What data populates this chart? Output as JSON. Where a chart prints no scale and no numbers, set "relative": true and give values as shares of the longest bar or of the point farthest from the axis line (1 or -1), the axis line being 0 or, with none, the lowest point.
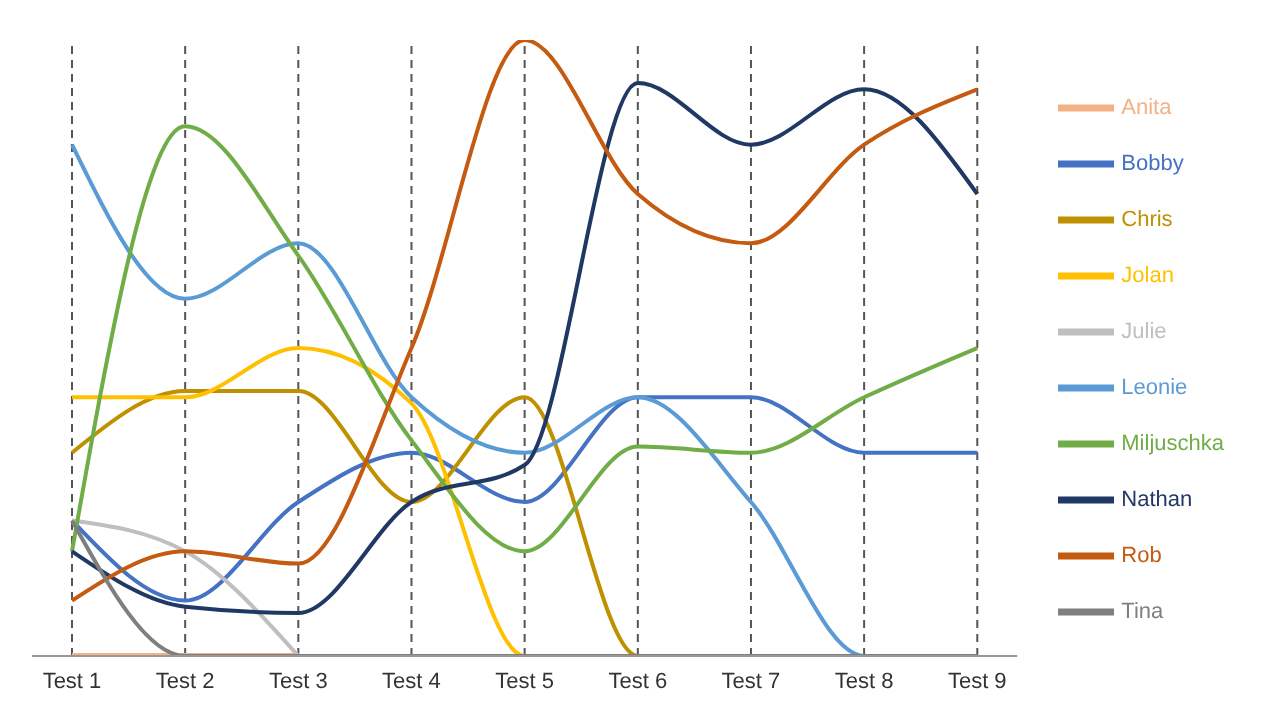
{
  "chart_data": {
    "type": "line",
    "relative": true,
    "grid": "x",
    "legend": "right",
    "marker": "none",
    "categories": [
      "Test 1",
      "Test 2",
      "Test 3",
      "Test 4",
      "Test 5",
      "Test 6",
      "Test 7",
      "Test 8",
      "Test 9"
    ],
    "series": [
      {
        "name": "Anita",
        "color": "#f4b183",
        "values": [
          0,
          0,
          0,
          null,
          null,
          null,
          null,
          null,
          null
        ]
      },
      {
        "name": "Bobby",
        "color": "#4472c4",
        "values": [
          0.22,
          0.09,
          0.25,
          0.33,
          0.25,
          0.42,
          0.42,
          0.33,
          0.33
        ]
      },
      {
        "name": "Chris",
        "color": "#bf9000",
        "values": [
          0.33,
          0.43,
          0.43,
          0.25,
          0.42,
          0,
          0,
          null,
          null
        ]
      },
      {
        "name": "Julie",
        "color": "#bfbfbf",
        "values": [
          0.22,
          0.17,
          0,
          null,
          null,
          null,
          null,
          null,
          null
        ]
      },
      {
        "name": "Jolan",
        "color": "#ffc000",
        "values": [
          0.42,
          0.42,
          0.5,
          0.41,
          0,
          0,
          null,
          null,
          null
        ]
      },
      {
        "name": "Leonie",
        "color": "#5b9bd5",
        "values": [
          0.83,
          0.58,
          0.67,
          0.42,
          0.33,
          0.42,
          0.25,
          0,
          0
        ]
      },
      {
        "name": "Miljuschka",
        "color": "#70ad47",
        "values": [
          0.17,
          0.86,
          0.65,
          0.35,
          0.17,
          0.34,
          0.33,
          0.42,
          0.5
        ]
      },
      {
        "name": "Nathan",
        "color": "#203864",
        "values": [
          0.17,
          0.08,
          0.07,
          0.25,
          0.31,
          0.93,
          0.83,
          0.92,
          0.75
        ]
      },
      {
        "name": "Rob",
        "color": "#c55a11",
        "values": [
          0.09,
          0.17,
          0.15,
          0.5,
          1,
          0.75,
          0.67,
          0.83,
          0.92
        ]
      },
      {
        "name": "Tina",
        "color": "#7f7f7f",
        "values": [
          0.22,
          0,
          0,
          0,
          0,
          0,
          0,
          0,
          0
        ]
      }
    ]
  }
}
